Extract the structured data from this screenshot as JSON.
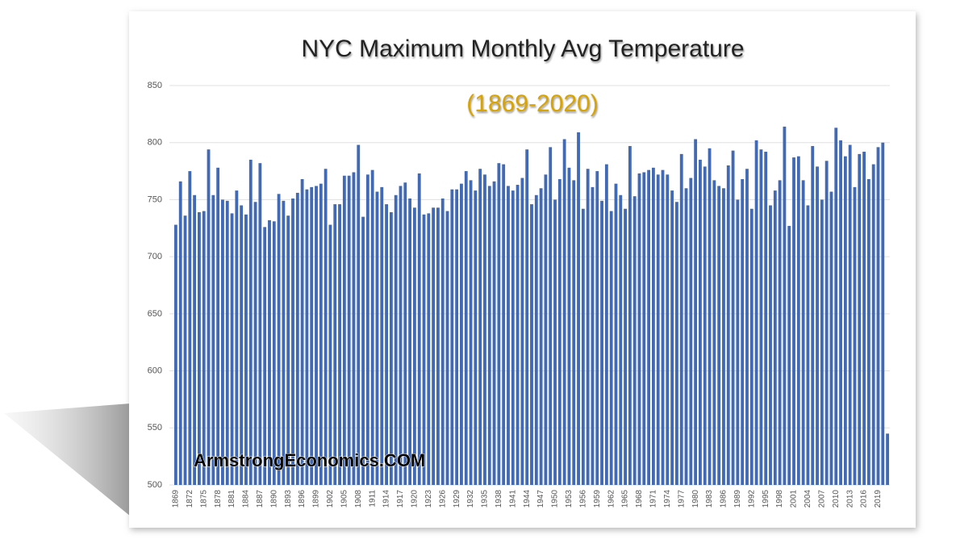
{
  "chart_data": {
    "type": "bar",
    "title": "NYC Maximum Monthly Avg Temperature",
    "subtitle": "(1869-2020)",
    "annotation": "ArmstrongEconomics.COM",
    "color": "#4169b4",
    "grid": true,
    "ylim": [
      500,
      850
    ],
    "yticks": [
      500,
      550,
      600,
      650,
      700,
      750,
      800,
      850
    ],
    "categories": [
      "1869",
      null,
      null,
      "1872",
      null,
      null,
      "1875",
      null,
      null,
      "1878",
      null,
      null,
      "1881",
      null,
      null,
      "1884",
      null,
      null,
      "1887",
      null,
      null,
      "1890",
      null,
      null,
      "1893",
      null,
      null,
      "1896",
      null,
      null,
      "1899",
      null,
      null,
      "1902",
      null,
      null,
      "1905",
      null,
      null,
      "1908",
      null,
      null,
      "1911",
      null,
      null,
      "1914",
      null,
      null,
      "1917",
      null,
      null,
      "1920",
      null,
      null,
      "1923",
      null,
      null,
      "1926",
      null,
      null,
      "1929",
      null,
      null,
      "1932",
      null,
      null,
      "1935",
      null,
      null,
      "1938",
      null,
      null,
      "1941",
      null,
      null,
      "1944",
      null,
      null,
      "1947",
      null,
      null,
      "1950",
      null,
      null,
      "1953",
      null,
      null,
      "1956",
      null,
      null,
      "1959",
      null,
      null,
      "1962",
      null,
      null,
      "1965",
      null,
      null,
      "1968",
      null,
      null,
      "1971",
      null,
      null,
      "1974",
      null,
      null,
      "1977",
      null,
      null,
      "1980",
      null,
      null,
      "1983",
      null,
      null,
      "1986",
      null,
      null,
      "1989",
      null,
      null,
      "1992",
      null,
      null,
      "1995",
      null,
      null,
      "1998",
      null,
      null,
      "2001",
      null,
      null,
      "2004",
      null,
      null,
      "2007",
      null,
      null,
      "2010",
      null,
      null,
      "2013",
      null,
      null,
      "2016",
      null,
      null,
      "2019",
      null,
      null
    ],
    "values": [
      728,
      766,
      736,
      775,
      754,
      739,
      740,
      794,
      754,
      778,
      750,
      749,
      738,
      758,
      745,
      737,
      785,
      748,
      782,
      726,
      732,
      731,
      755,
      749,
      736,
      751,
      756,
      768,
      759,
      761,
      762,
      764,
      777,
      728,
      746,
      746,
      771,
      771,
      774,
      798,
      735,
      772,
      776,
      757,
      761,
      746,
      739,
      754,
      762,
      765,
      751,
      743,
      773,
      737,
      738,
      743,
      743,
      751,
      740,
      759,
      759,
      764,
      775,
      767,
      758,
      777,
      772,
      762,
      766,
      782,
      781,
      762,
      758,
      763,
      769,
      794,
      746,
      754,
      760,
      772,
      796,
      750,
      768,
      803,
      778,
      767,
      809,
      742,
      777,
      761,
      775,
      749,
      781,
      740,
      764,
      754,
      742,
      797,
      753,
      773,
      774,
      776,
      778,
      772,
      776,
      772,
      758,
      748,
      790,
      760,
      769,
      803,
      785,
      779,
      795,
      767,
      762,
      760,
      780,
      793,
      750,
      768,
      777,
      742,
      802,
      794,
      792,
      745,
      758,
      767,
      814,
      727,
      787,
      788,
      767,
      745,
      797,
      779,
      750,
      784,
      757,
      813,
      802,
      788,
      798,
      761,
      790,
      792,
      768,
      781,
      796,
      800,
      545
    ]
  }
}
